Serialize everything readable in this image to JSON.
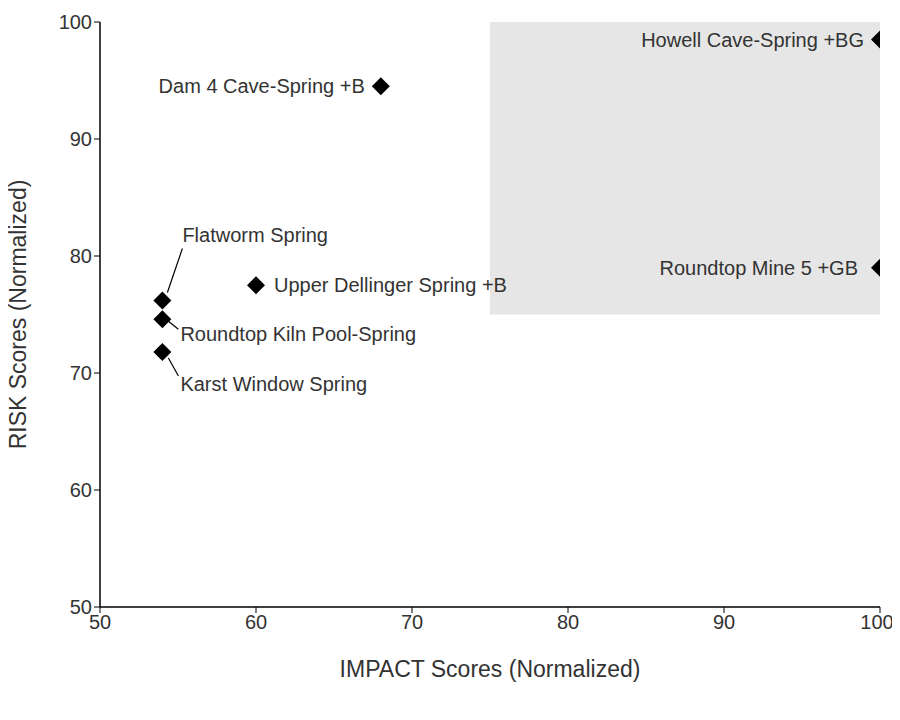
{
  "chart_data": {
    "type": "scatter",
    "x_label": "IMPACT Scores (Normalized)",
    "y_label": "RISK Scores (Normalized)",
    "labels": [
      "Howell Cave-Spring +BG",
      "Dam 4 Cave-Spring +B",
      "Flatworm Spring",
      "Roundtop Kiln Pool-Spring",
      "Karst Window Spring",
      "Upper Dellinger Spring +B",
      "Roundtop Mine 5 +GB"
    ],
    "x": [
      100,
      68,
      54,
      54,
      54,
      60,
      100
    ],
    "values": [
      98.5,
      94.5,
      76.2,
      74.6,
      71.8,
      77.5,
      79
    ],
    "color": "#000000",
    "marker": "diamond",
    "xlim": [
      50,
      100
    ],
    "ylim": [
      50,
      100
    ],
    "xticks": [
      50,
      60,
      70,
      80,
      90,
      100
    ],
    "yticks": [
      50,
      60,
      70,
      80,
      90,
      100
    ],
    "grid": false,
    "shaded_region": {
      "x": [
        75,
        100
      ],
      "y": [
        75,
        100
      ],
      "color": "#e6e6e6"
    }
  }
}
